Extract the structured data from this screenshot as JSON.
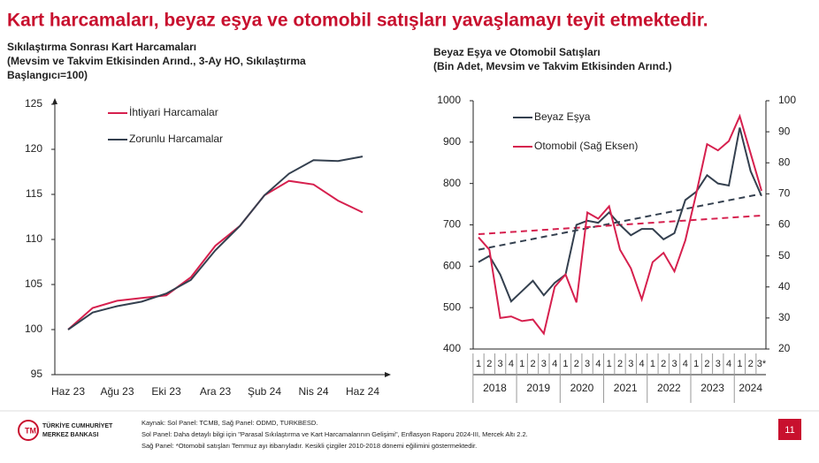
{
  "header": {
    "title": "Kart harcamaları, beyaz eşya ve otomobil satışları yavaşlamayı teyit etmektedir."
  },
  "chart_data": [
    {
      "type": "line",
      "title": [
        "Sıkılaştırma Sonrası Kart Harcamaları",
        "(Mevsim ve Takvim Etkisinden Arınd., 3-Ay HO, Sıkılaştırma",
        "Başlangıcı=100)"
      ],
      "categories": [
        "Haz 23",
        null,
        "Ağu 23",
        null,
        "Eki 23",
        null,
        "Ara 23",
        null,
        "Şub 24",
        null,
        "Nis 24",
        null,
        "Haz 24"
      ],
      "series": [
        {
          "name": "İhtiyari Harcamalar",
          "color": "#d6204e",
          "values": [
            100,
            102.4,
            103.2,
            103.5,
            103.8,
            105.8,
            109.3,
            111.5,
            114.9,
            116.5,
            116.1,
            114.3,
            113.0
          ]
        },
        {
          "name": "Zorunlu Harcamalar",
          "color": "#34404f",
          "values": [
            100,
            101.9,
            102.6,
            103.1,
            104.0,
            105.5,
            108.8,
            111.5,
            114.9,
            117.3,
            118.8,
            118.7,
            119.2
          ]
        }
      ],
      "ylim": [
        95,
        125
      ],
      "yticks": [
        95,
        100,
        105,
        110,
        115,
        120,
        125
      ]
    },
    {
      "type": "line",
      "title": [
        "Beyaz Eşya ve Otomobil Satışları",
        "(Bin Adet, Mevsim ve Takvim Etkisinden Arınd.)"
      ],
      "categories": [
        "1",
        "2",
        "3",
        "4",
        "1",
        "2",
        "3",
        "4",
        "1",
        "2",
        "3",
        "4",
        "1",
        "2",
        "3",
        "4",
        "1",
        "2",
        "3",
        "4",
        "1",
        "2",
        "3",
        "4",
        "1",
        "2",
        "3*"
      ],
      "years": [
        "2018",
        "2019",
        "2020",
        "2021",
        "2022",
        "2023",
        "2024"
      ],
      "series": [
        {
          "name": "Beyaz Eşya",
          "color": "#34404f",
          "values": [
            610,
            625,
            580,
            515,
            540,
            565,
            530,
            560,
            580,
            700,
            710,
            705,
            730,
            700,
            675,
            690,
            690,
            665,
            680,
            760,
            780,
            820,
            800,
            795,
            935,
            830,
            770
          ]
        },
        {
          "name": "Otomobil (Sağ Eksen)",
          "color": "#d6204e",
          "axis": "y2",
          "values": [
            56,
            52,
            30,
            30.5,
            29,
            29.5,
            25,
            40,
            44,
            35,
            64,
            62,
            66,
            52,
            46,
            36,
            48,
            51,
            45,
            55,
            70,
            86,
            84,
            87,
            95,
            83,
            71
          ]
        }
      ],
      "trend_lines": [
        {
          "color": "#34404f",
          "start": 640,
          "end": 775
        },
        {
          "color": "#d6204e",
          "axis": "y2",
          "start": 57,
          "end": 63
        }
      ],
      "ylim": [
        400,
        1000
      ],
      "yticks": [
        400,
        500,
        600,
        700,
        800,
        900,
        1000
      ],
      "y2lim": [
        20,
        100
      ],
      "y2ticks": [
        20,
        30,
        40,
        50,
        60,
        70,
        80,
        90,
        100
      ]
    }
  ],
  "footer": {
    "logo": [
      "TÜRKİYE CUMHURİYET",
      "MERKEZ BANKASI"
    ],
    "sources": [
      "Kaynak: Sol Panel: TCMB, Sağ Panel: ODMD, TURKBESD.",
      "Sol Panel: Daha detaylı bilgi için \"Parasal Sıkılaştırma ve Kart Harcamalarının Gelişimi\", Enflasyon Raporu 2024-III, Mercek Altı 2.2.",
      "Sağ Panel: *Otomobil satışları Temmuz ayı itibarıyladır. Kesikli çizgiler 2010-2018 dönemi eğilimini göstermektedir."
    ],
    "page": "11"
  }
}
